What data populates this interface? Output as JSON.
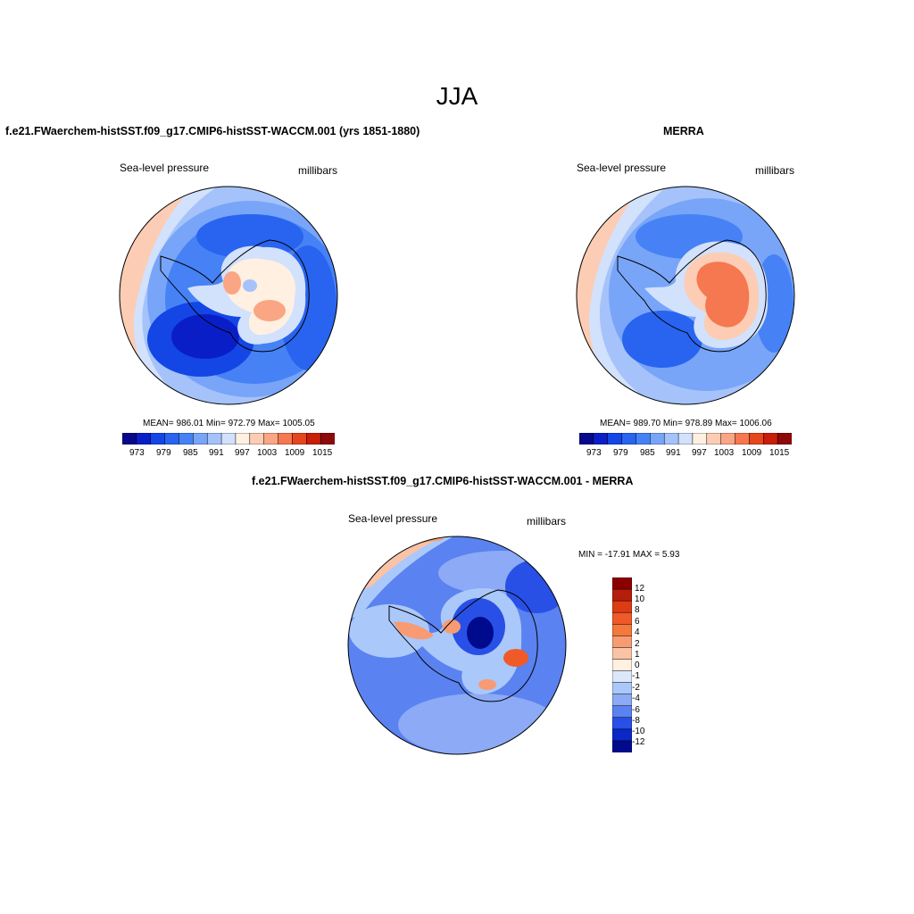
{
  "figure": {
    "title": "JJA"
  },
  "panels": [
    {
      "title": "f.e21.FWaerchem-histSST.f09_g17.CMIP6-histSST-WACCM.001 (yrs 1851-1880)",
      "variable": "Sea-level pressure",
      "units": "millibars",
      "stats": "MEAN= 986.01   Min= 972.79   Max= 1005.05",
      "colorbar_labels": [
        "973",
        "979",
        "985",
        "991",
        "997",
        "1003",
        "1009",
        "1015"
      ]
    },
    {
      "title": "MERRA",
      "variable": "Sea-level pressure",
      "units": "millibars",
      "stats": "MEAN= 989.70   Min= 978.89   Max= 1006.06",
      "colorbar_labels": [
        "973",
        "979",
        "985",
        "991",
        "997",
        "1003",
        "1009",
        "1015"
      ]
    },
    {
      "title": "f.e21.FWaerchem-histSST.f09_g17.CMIP6-histSST-WACCM.001 - MERRA",
      "variable": "Sea-level pressure",
      "units": "millibars",
      "stats": "MIN = -17.91  MAX =   5.93",
      "colorbar_labels": [
        "12",
        "10",
        "8",
        "6",
        "4",
        "2",
        "1",
        "0",
        "-1",
        "-2",
        "-4",
        "-6",
        "-8",
        "-10",
        "-12"
      ]
    }
  ],
  "colors": {
    "abs_scale": [
      "#08088c",
      "#0a1ec8",
      "#1446e6",
      "#2864f0",
      "#4682f5",
      "#78a5f8",
      "#a5c3fa",
      "#d2e1fc",
      "#fff0e1",
      "#fccdb4",
      "#faa584",
      "#f57850",
      "#e6461e",
      "#c81e0a",
      "#8c0a0a"
    ],
    "diff_scale": [
      "#8c0000",
      "#b41e0a",
      "#dc3c14",
      "#f05a28",
      "#f5783c",
      "#f89b73",
      "#fac3a5",
      "#fff0e1",
      "#dce8fa",
      "#aac8fa",
      "#8caaf5",
      "#5a82f0",
      "#2850e6",
      "#0a28c8",
      "#000a8c"
    ]
  }
}
